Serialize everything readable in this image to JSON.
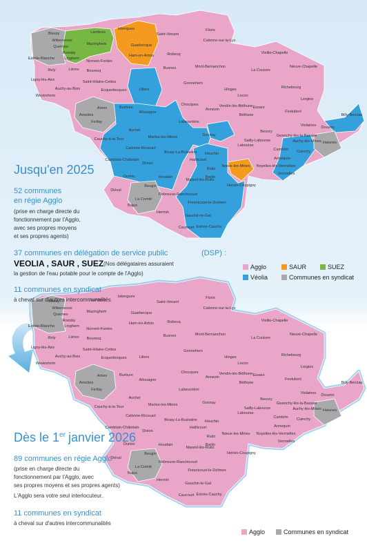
{
  "communes": [
    "Blessy",
    "Witternesse",
    "Quernes",
    "Rombly",
    "Lambres",
    "Isbergues",
    "Saint-Venant",
    "Floris",
    "Calonne-sur-la-Lys",
    "Mazinghem",
    "Guarbecque",
    "Linghem",
    "Norrent-Fontes",
    "Ham-en-Artois",
    "Robecq",
    "Estrée-Blanche",
    "Lières",
    "Rely",
    "Bourecq",
    "Busnes",
    "Mont-Bernanchon",
    "Vieille-Chapelle",
    "Neuve-Chapelle",
    "La Couture",
    "Ligny-lès-Aire",
    "Saint-Hilaire-Cottes",
    "Ecquedecques",
    "Gonnehem",
    "Hinges",
    "Locon",
    "Richebourg",
    "Lorgies",
    "Auchy-au-Bois",
    "Westrehem",
    "Lillers",
    "Vendin-lès-Béthune",
    "Essars",
    "Festubert",
    "Violaines",
    "Ames",
    "Amettes",
    "Chocques",
    "Annezin",
    "Béthune",
    "Beuvry",
    "Burbure",
    "Allouagne",
    "Labeuvrière",
    "Ferfay",
    "Gosnay",
    "Sailly-Labourse",
    "Givenchy-lès-la-Bassée",
    "Cuinchy",
    "Auchel",
    "Billy-Berclau",
    "Douvrin",
    "Auchy-lès-Mines",
    "Cambrin",
    "Annequin",
    "Haisnes",
    "Marles-les-Mines",
    "Cauchy-à-la-Tour",
    "Calonne-Ricouart",
    "Bruay-La-Buissière",
    "Labourse",
    "Noyelles-lès-Vermelles",
    "Vermelles",
    "Haillicourt",
    "Camblain-Châtelain",
    "Divion",
    "Houchin",
    "Ruitz",
    "Nœux-les-Mines",
    "Ourton",
    "Houdain",
    "Maisnil-lès-Ruitz",
    "Barlin",
    "Diéval",
    "Beugin",
    "Hersin-Coupigny",
    "Rebreuve-Ranchicourt",
    "La Comté",
    "Bajus",
    "Fresnicourt-le-Dolmen",
    "Hermin",
    "Gauchin-le-Gal",
    "Caucourt",
    "Estrée-Cauchy"
  ],
  "section_2025": {
    "title": "Jusqu'en 2025",
    "regie": {
      "heading": [
        "52 communes",
        "en régie Agglo"
      ],
      "note": [
        "(prise en charge directe du",
        "fonctionnement par l'Agglo,",
        "avec ses propres moyens",
        "et ses propres agents)"
      ]
    },
    "dsp": {
      "heading": "37 communes en délégation de service public",
      "suffix": "(DSP) :",
      "operators": "VEOLIA , SAUR , SUEZ",
      "note": [
        "(Nos délégataires assuraient",
        "la gestion de l'eau potable pour le compte de l'Agglo)"
      ]
    },
    "syndicat": {
      "heading": "11 communes en syndicat",
      "note": "à cheval sur d'autres intercommunalités"
    },
    "legend": [
      "Agglo",
      "SAUR",
      "SUEZ",
      "Véolia",
      "Communes en syndicat"
    ]
  },
  "section_2026": {
    "title": {
      "before": "Dès le 1",
      "sup": "er",
      "after": "janvier 2026"
    },
    "regie": {
      "heading": "89 communes en régie Agglo",
      "note": [
        "(prise en charge directe du",
        "fonctionnement par l'Agglo, avec",
        "ses propres moyens et ses propres agents)",
        "L'Agglo sera votre seul interlocuteur."
      ]
    },
    "syndicat": {
      "heading": "11 communes en syndicat",
      "note": "à cheval sur d'autres intercommunalités"
    },
    "legend": [
      "Agglo",
      "Communes en syndicat"
    ]
  }
}
